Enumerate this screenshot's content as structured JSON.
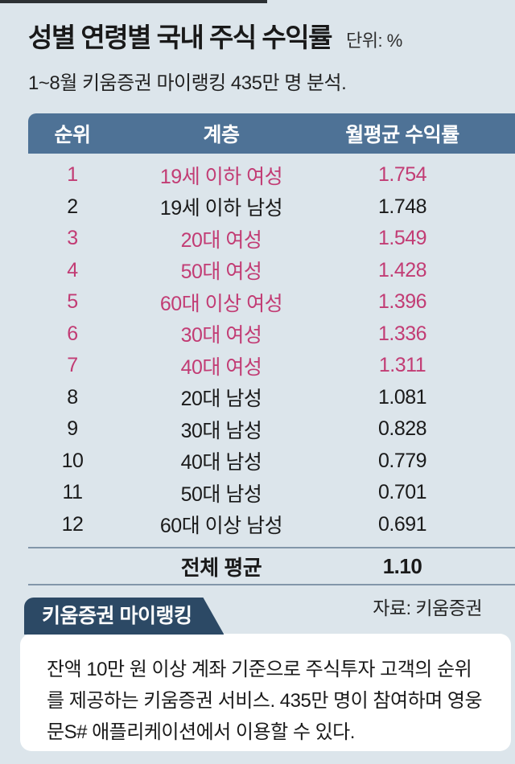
{
  "page": {
    "title": "성별 연령별 국내 주식 수익률",
    "unit_label": "단위: %",
    "subtitle": "1~8월 키움증권 마이랭킹 435만 명 분석."
  },
  "table": {
    "headers": {
      "rank": "순위",
      "stratum": "계층",
      "return": "월평균 수익률"
    },
    "rows": [
      {
        "rank": "1",
        "stratum": "19세 이하 여성",
        "value": "1.754",
        "highlight": true
      },
      {
        "rank": "2",
        "stratum": "19세 이하 남성",
        "value": "1.748",
        "highlight": false
      },
      {
        "rank": "3",
        "stratum": "20대 여성",
        "value": "1.549",
        "highlight": true
      },
      {
        "rank": "4",
        "stratum": "50대 여성",
        "value": "1.428",
        "highlight": true
      },
      {
        "rank": "5",
        "stratum": "60대 이상 여성",
        "value": "1.396",
        "highlight": true
      },
      {
        "rank": "6",
        "stratum": "30대 여성",
        "value": "1.336",
        "highlight": true
      },
      {
        "rank": "7",
        "stratum": "40대 여성",
        "value": "1.311",
        "highlight": true
      },
      {
        "rank": "8",
        "stratum": "20대 남성",
        "value": "1.081",
        "highlight": false
      },
      {
        "rank": "9",
        "stratum": "30대 남성",
        "value": "0.828",
        "highlight": false
      },
      {
        "rank": "10",
        "stratum": "40대 남성",
        "value": "0.779",
        "highlight": false
      },
      {
        "rank": "11",
        "stratum": "50대 남성",
        "value": "0.701",
        "highlight": false
      },
      {
        "rank": "12",
        "stratum": "60대 이상 남성",
        "value": "0.691",
        "highlight": false
      }
    ],
    "summary": {
      "label": "전체 평균",
      "value": "1.10"
    }
  },
  "source": "자료: 키움증권",
  "callout": {
    "badge": "키움증권 마이랭킹",
    "body": "잔액 10만 원 이상 계좌 기준으로 주식투자 고객의 순위를 제공하는 키움증권 서비스. 435만 명이 참여하며 영웅문S# 애플리케이션에서 이용할 수 있다."
  },
  "colors": {
    "background": "#dce5eb",
    "header_bar": "#4e7296",
    "highlight_pink": "#c23c74",
    "badge_navy": "#2c4965",
    "text_dark": "#1a1a1a"
  },
  "chart_data": {
    "type": "table",
    "title": "성별 연령별 국내 주식 수익률",
    "unit": "%",
    "subtitle": "1~8월 키움증권 마이랭킹 435만 명 분석.",
    "columns": [
      "순위",
      "계층",
      "월평균 수익률"
    ],
    "rows": [
      [
        1,
        "19세 이하 여성",
        1.754
      ],
      [
        2,
        "19세 이하 남성",
        1.748
      ],
      [
        3,
        "20대 여성",
        1.549
      ],
      [
        4,
        "50대 여성",
        1.428
      ],
      [
        5,
        "60대 이상 여성",
        1.396
      ],
      [
        6,
        "30대 여성",
        1.336
      ],
      [
        7,
        "40대 여성",
        1.311
      ],
      [
        8,
        "20대 남성",
        1.081
      ],
      [
        9,
        "30대 남성",
        0.828
      ],
      [
        10,
        "40대 남성",
        0.779
      ],
      [
        11,
        "50대 남성",
        0.701
      ],
      [
        12,
        "60대 이상 남성",
        0.691
      ]
    ],
    "overall_average": 1.1,
    "highlight_note": "female groups rendered in pink",
    "source": "자료: 키움증권"
  }
}
